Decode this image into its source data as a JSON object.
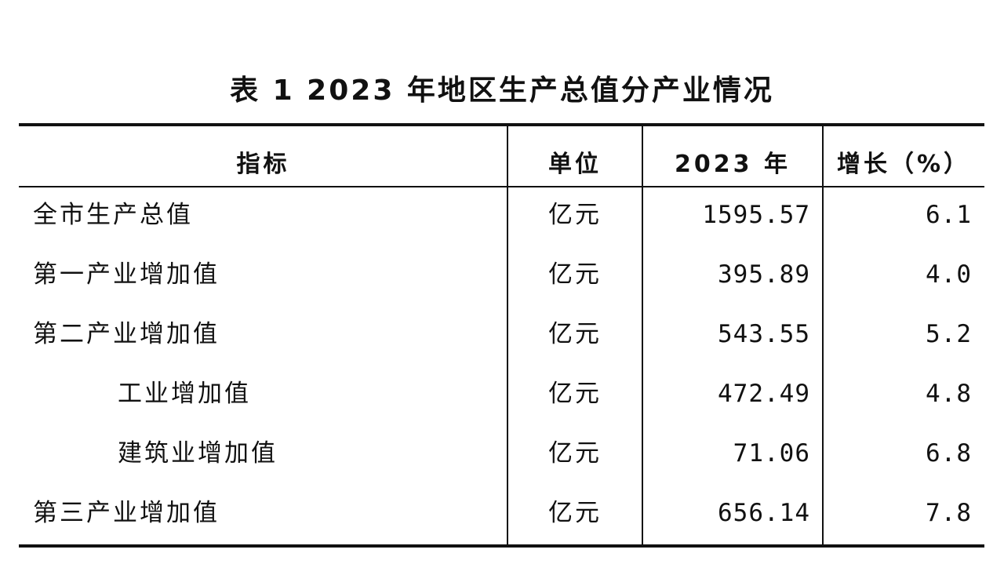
{
  "header": {
    "title": "表 1   2023 年地区生产总值分产业情况"
  },
  "table": {
    "columns": [
      "指标",
      "单位",
      "2023 年",
      "增长（%）"
    ],
    "rows": [
      [
        "全市生产总值",
        "亿元",
        "1595.57",
        "6.1"
      ],
      [
        "第一产业增加值",
        "亿元",
        "395.89",
        "4.0"
      ],
      [
        "第二产业增加值",
        "亿元",
        "543.55",
        "5.2"
      ],
      [
        "工业增加值",
        "亿元",
        "472.49",
        "4.8"
      ],
      [
        "建筑业增加值",
        "亿元",
        "71.06",
        "6.8"
      ],
      [
        "第三产业增加值",
        "亿元",
        "656.14",
        "7.8"
      ]
    ],
    "indented_rows": [
      3,
      4
    ]
  }
}
